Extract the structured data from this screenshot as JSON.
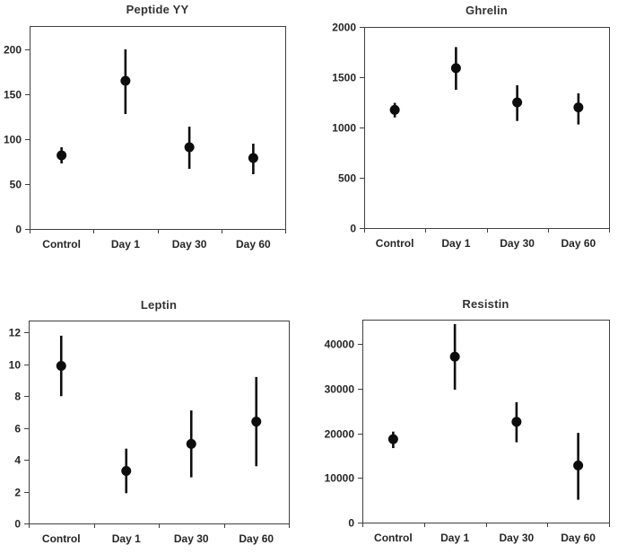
{
  "figure": {
    "background": "#ffffff",
    "description": "Four-panel figure of gut hormone levels (mean with error bars) in Control group and at Day 1, Day 30, Day 60"
  },
  "style": {
    "marker_color": "#0d0d0d",
    "error_bar_color": "#0d0d0d",
    "axis_color": "#3f3f3f",
    "text_color": "#262626",
    "title_color": "#333333"
  },
  "chart_data": [
    {
      "type": "scatter",
      "title": "Peptide YY",
      "categories": [
        "Control",
        "Day 1",
        "Day 30",
        "Day 60"
      ],
      "points": [
        {
          "mean": 82,
          "lo": 73,
          "hi": 91
        },
        {
          "mean": 165,
          "lo": 128,
          "hi": 200
        },
        {
          "mean": 91,
          "lo": 67,
          "hi": 114
        },
        {
          "mean": 79,
          "lo": 61,
          "hi": 95
        }
      ],
      "yticks": [
        0,
        50,
        100,
        150,
        200
      ],
      "ylim": [
        0,
        226
      ],
      "xlabel": "",
      "ylabel": "",
      "grid": false,
      "legend": false,
      "marker": "filled-circle-with-vertical-error-bar"
    },
    {
      "type": "scatter",
      "title": "Ghrelin",
      "categories": [
        "Control",
        "Day 1",
        "Day 30",
        "Day 60"
      ],
      "points": [
        {
          "mean": 1175,
          "lo": 1100,
          "hi": 1245
        },
        {
          "mean": 1590,
          "lo": 1375,
          "hi": 1800
        },
        {
          "mean": 1250,
          "lo": 1065,
          "hi": 1420
        },
        {
          "mean": 1200,
          "lo": 1030,
          "hi": 1340
        }
      ],
      "yticks": [
        0,
        500,
        1000,
        1500,
        2000
      ],
      "ylim": [
        0,
        2000
      ],
      "xlabel": "",
      "ylabel": "",
      "grid": false,
      "legend": false,
      "marker": "filled-circle-with-vertical-error-bar"
    },
    {
      "type": "scatter",
      "title": "Leptin",
      "categories": [
        "Control",
        "Day 1",
        "Day 30",
        "Day 60"
      ],
      "points": [
        {
          "mean": 9.9,
          "lo": 8.0,
          "hi": 11.8
        },
        {
          "mean": 3.3,
          "lo": 1.9,
          "hi": 4.7
        },
        {
          "mean": 5.0,
          "lo": 2.9,
          "hi": 7.1
        },
        {
          "mean": 6.4,
          "lo": 3.6,
          "hi": 9.2
        }
      ],
      "yticks": [
        0,
        2,
        4,
        6,
        8,
        10,
        12
      ],
      "ylim": [
        0,
        12.75
      ],
      "xlabel": "",
      "ylabel": "",
      "grid": false,
      "legend": false,
      "marker": "filled-circle-with-vertical-error-bar"
    },
    {
      "type": "scatter",
      "title": "Resistin",
      "categories": [
        "Control",
        "Day 1",
        "Day 30",
        "Day 60"
      ],
      "points": [
        {
          "mean": 18700,
          "lo": 16700,
          "hi": 20400
        },
        {
          "mean": 37200,
          "lo": 29800,
          "hi": 44500
        },
        {
          "mean": 22600,
          "lo": 18000,
          "hi": 27000
        },
        {
          "mean": 12800,
          "lo": 5100,
          "hi": 20100
        }
      ],
      "yticks": [
        0,
        10000,
        20000,
        30000,
        40000
      ],
      "ylim": [
        0,
        45500
      ],
      "xlabel": "",
      "ylabel": "",
      "grid": false,
      "legend": false,
      "marker": "filled-circle-with-vertical-error-bar"
    }
  ]
}
